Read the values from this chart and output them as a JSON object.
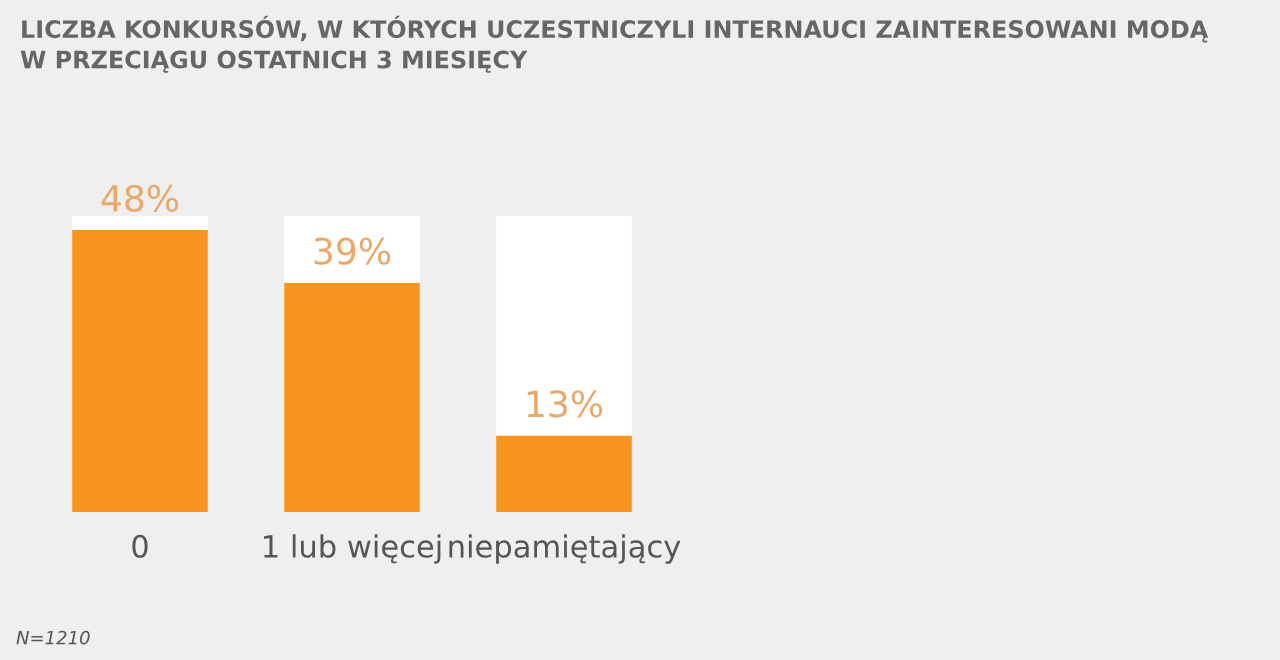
{
  "chart_data": {
    "type": "bar",
    "title": "LICZBA KONKURSÓW, W KTÓRYCH UCZESTNICZYLI INTERNAUCI ZAINTERESOWANI MODĄ\nW PRZECIĄGU OSTATNICH 3 MIESIĘCY",
    "categories": [
      "0",
      "1 lub więcej",
      "niepamiętający"
    ],
    "values": [
      48,
      39,
      13
    ],
    "value_labels": [
      "48%",
      "39%",
      "13%"
    ],
    "color": "#f7941d",
    "grid": false,
    "legend": false,
    "annotations": [
      "N=1210"
    ]
  }
}
